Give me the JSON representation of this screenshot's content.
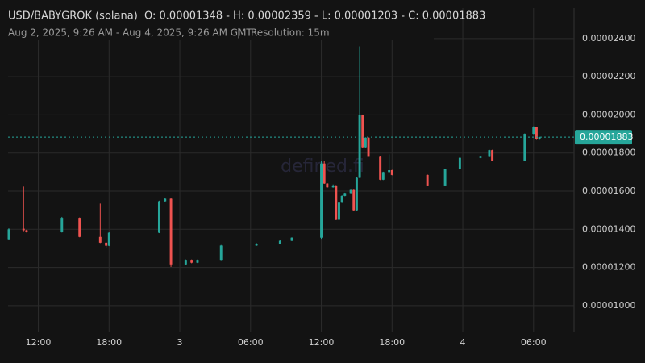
{
  "header": {
    "symbol": "USD/BABYGROK (solana)",
    "ohlc": "O: 0.00001348 - H: 0.00002359 - L: 0.00001203 - C: 0.00001883",
    "range": "Aug 2, 2025, 9:26 AM - Aug 4, 2025, 9:26 AM GMT",
    "separator": "|",
    "resolution": "Resolution: 15m",
    "watermark": "defined.fi"
  },
  "chart_data": {
    "type": "candlestick",
    "up_color": "#26a69a",
    "down_color": "#ef5350",
    "grid": true,
    "xlim": [
      "2025-08-02T09:26Z",
      "2025-08-04T09:26Z"
    ],
    "xticks": [
      {
        "value": "2025-08-02T12:00Z",
        "label": "12:00"
      },
      {
        "value": "2025-08-02T18:00Z",
        "label": "18:00"
      },
      {
        "value": "2025-08-03T00:00Z",
        "label": "3"
      },
      {
        "value": "2025-08-03T06:00Z",
        "label": "06:00"
      },
      {
        "value": "2025-08-03T12:00Z",
        "label": "12:00"
      },
      {
        "value": "2025-08-03T18:00Z",
        "label": "18:00"
      },
      {
        "value": "2025-08-04T00:00Z",
        "label": "4"
      },
      {
        "value": "2025-08-04T06:00Z",
        "label": "06:00"
      }
    ],
    "ylim": [
      8.6e-06,
      2.56e-05
    ],
    "yticks": [
      {
        "value": 1e-05,
        "label": "0.00001000"
      },
      {
        "value": 1.2e-05,
        "label": "0.00001200"
      },
      {
        "value": 1.4e-05,
        "label": "0.00001400"
      },
      {
        "value": 1.6e-05,
        "label": "0.00001600"
      },
      {
        "value": 1.8e-05,
        "label": "0.00001800"
      },
      {
        "value": 2e-05,
        "label": "0.00002000"
      },
      {
        "value": 2.2e-05,
        "label": "0.00002200"
      },
      {
        "value": 2.4e-05,
        "label": "0.00002400"
      }
    ],
    "last_price": {
      "value": 1.883e-05,
      "label": "0.00001883"
    },
    "x": [
      "2025-08-02T09:30Z",
      "2025-08-02T10:45Z",
      "2025-08-02T11:00Z",
      "2025-08-02T14:00Z",
      "2025-08-02T15:30Z",
      "2025-08-02T17:15Z",
      "2025-08-02T17:45Z",
      "2025-08-02T18:00Z",
      "2025-08-02T22:15Z",
      "2025-08-02T22:45Z",
      "2025-08-02T23:15Z",
      "2025-08-03T00:30Z",
      "2025-08-03T01:00Z",
      "2025-08-03T01:30Z",
      "2025-08-03T03:30Z",
      "2025-08-03T06:30Z",
      "2025-08-03T08:30Z",
      "2025-08-03T09:30Z",
      "2025-08-03T12:00Z",
      "2025-08-03T12:15Z",
      "2025-08-03T12:30Z",
      "2025-08-03T13:00Z",
      "2025-08-03T13:15Z",
      "2025-08-03T13:30Z",
      "2025-08-03T13:45Z",
      "2025-08-03T14:00Z",
      "2025-08-03T14:30Z",
      "2025-08-03T14:45Z",
      "2025-08-03T15:00Z",
      "2025-08-03T15:15Z",
      "2025-08-03T15:30Z",
      "2025-08-03T15:45Z",
      "2025-08-03T16:00Z",
      "2025-08-03T17:00Z",
      "2025-08-03T17:15Z",
      "2025-08-03T17:45Z",
      "2025-08-03T18:00Z",
      "2025-08-03T21:00Z",
      "2025-08-03T22:30Z",
      "2025-08-03T23:45Z",
      "2025-08-04T01:30Z",
      "2025-08-04T02:15Z",
      "2025-08-04T02:30Z",
      "2025-08-04T05:15Z",
      "2025-08-04T06:00Z",
      "2025-08-04T06:15Z",
      "2025-08-04T06:30Z"
    ],
    "open": [
      1.348e-05,
      1.403e-05,
      1.395e-05,
      1.385e-05,
      1.46e-05,
      1.36e-05,
      1.33e-05,
      1.314e-05,
      1.382e-05,
      1.547e-05,
      1.56e-05,
      1.216e-05,
      1.24e-05,
      1.225e-05,
      1.24e-05,
      1.315e-05,
      1.325e-05,
      1.34e-05,
      1.356e-05,
      1.745e-05,
      1.64e-05,
      1.62e-05,
      1.63e-05,
      1.45e-05,
      1.54e-05,
      1.575e-05,
      1.59e-05,
      1.61e-05,
      1.5e-05,
      1.67e-05,
      2e-05,
      1.83e-05,
      1.88e-05,
      1.78e-05,
      1.66e-05,
      1.7e-05,
      1.71e-05,
      1.685e-05,
      1.63e-05,
      1.715e-05,
      1.775e-05,
      1.78e-05,
      1.815e-05,
      1.76e-05,
      1.9e-05,
      1.935e-05,
      1.875e-05
    ],
    "high": [
      1.405e-05,
      1.624e-05,
      1.398e-05,
      1.465e-05,
      1.462e-05,
      1.535e-05,
      1.332e-05,
      1.385e-05,
      1.55e-05,
      1.562e-05,
      1.565e-05,
      1.242e-05,
      1.242e-05,
      1.242e-05,
      1.318e-05,
      1.328e-05,
      1.342e-05,
      1.358e-05,
      1.76e-05,
      1.76e-05,
      1.642e-05,
      1.635e-05,
      1.632e-05,
      1.542e-05,
      1.578e-05,
      1.592e-05,
      1.612e-05,
      1.612e-05,
      1.672e-05,
      2.359e-05,
      2.002e-05,
      1.882e-05,
      1.882e-05,
      1.782e-05,
      1.702e-05,
      1.793e-05,
      1.712e-05,
      1.687e-05,
      1.717e-05,
      1.777e-05,
      1.782e-05,
      1.817e-05,
      1.817e-05,
      1.902e-05,
      1.94e-05,
      1.938e-05,
      1.885e-05
    ],
    "low": [
      1.345e-05,
      1.39e-05,
      1.383e-05,
      1.383e-05,
      1.358e-05,
      1.328e-05,
      1.305e-05,
      1.312e-05,
      1.38e-05,
      1.545e-05,
      1.203e-05,
      1.214e-05,
      1.222e-05,
      1.223e-05,
      1.238e-05,
      1.313e-05,
      1.323e-05,
      1.338e-05,
      1.35e-05,
      1.638e-05,
      1.618e-05,
      1.618e-05,
      1.448e-05,
      1.448e-05,
      1.538e-05,
      1.573e-05,
      1.588e-05,
      1.498e-05,
      1.498e-05,
      1.668e-05,
      1.828e-05,
      1.828e-05,
      1.788e-05,
      1.658e-05,
      1.658e-05,
      1.698e-05,
      1.683e-05,
      1.628e-05,
      1.628e-05,
      1.713e-05,
      1.773e-05,
      1.778e-05,
      1.758e-05,
      1.758e-05,
      1.898e-05,
      1.873e-05,
      1.873e-05
    ],
    "close": [
      1.4e-05,
      1.395e-05,
      1.385e-05,
      1.46e-05,
      1.36e-05,
      1.33e-05,
      1.314e-05,
      1.382e-05,
      1.547e-05,
      1.56e-05,
      1.216e-05,
      1.24e-05,
      1.225e-05,
      1.24e-05,
      1.315e-05,
      1.325e-05,
      1.34e-05,
      1.356e-05,
      1.745e-05,
      1.64e-05,
      1.62e-05,
      1.63e-05,
      1.45e-05,
      1.54e-05,
      1.575e-05,
      1.59e-05,
      1.61e-05,
      1.5e-05,
      1.67e-05,
      2e-05,
      1.83e-05,
      1.88e-05,
      1.78e-05,
      1.66e-05,
      1.7e-05,
      1.71e-05,
      1.685e-05,
      1.63e-05,
      1.715e-05,
      1.775e-05,
      1.78e-05,
      1.815e-05,
      1.76e-05,
      1.9e-05,
      1.935e-05,
      1.875e-05,
      1.883e-05
    ]
  }
}
